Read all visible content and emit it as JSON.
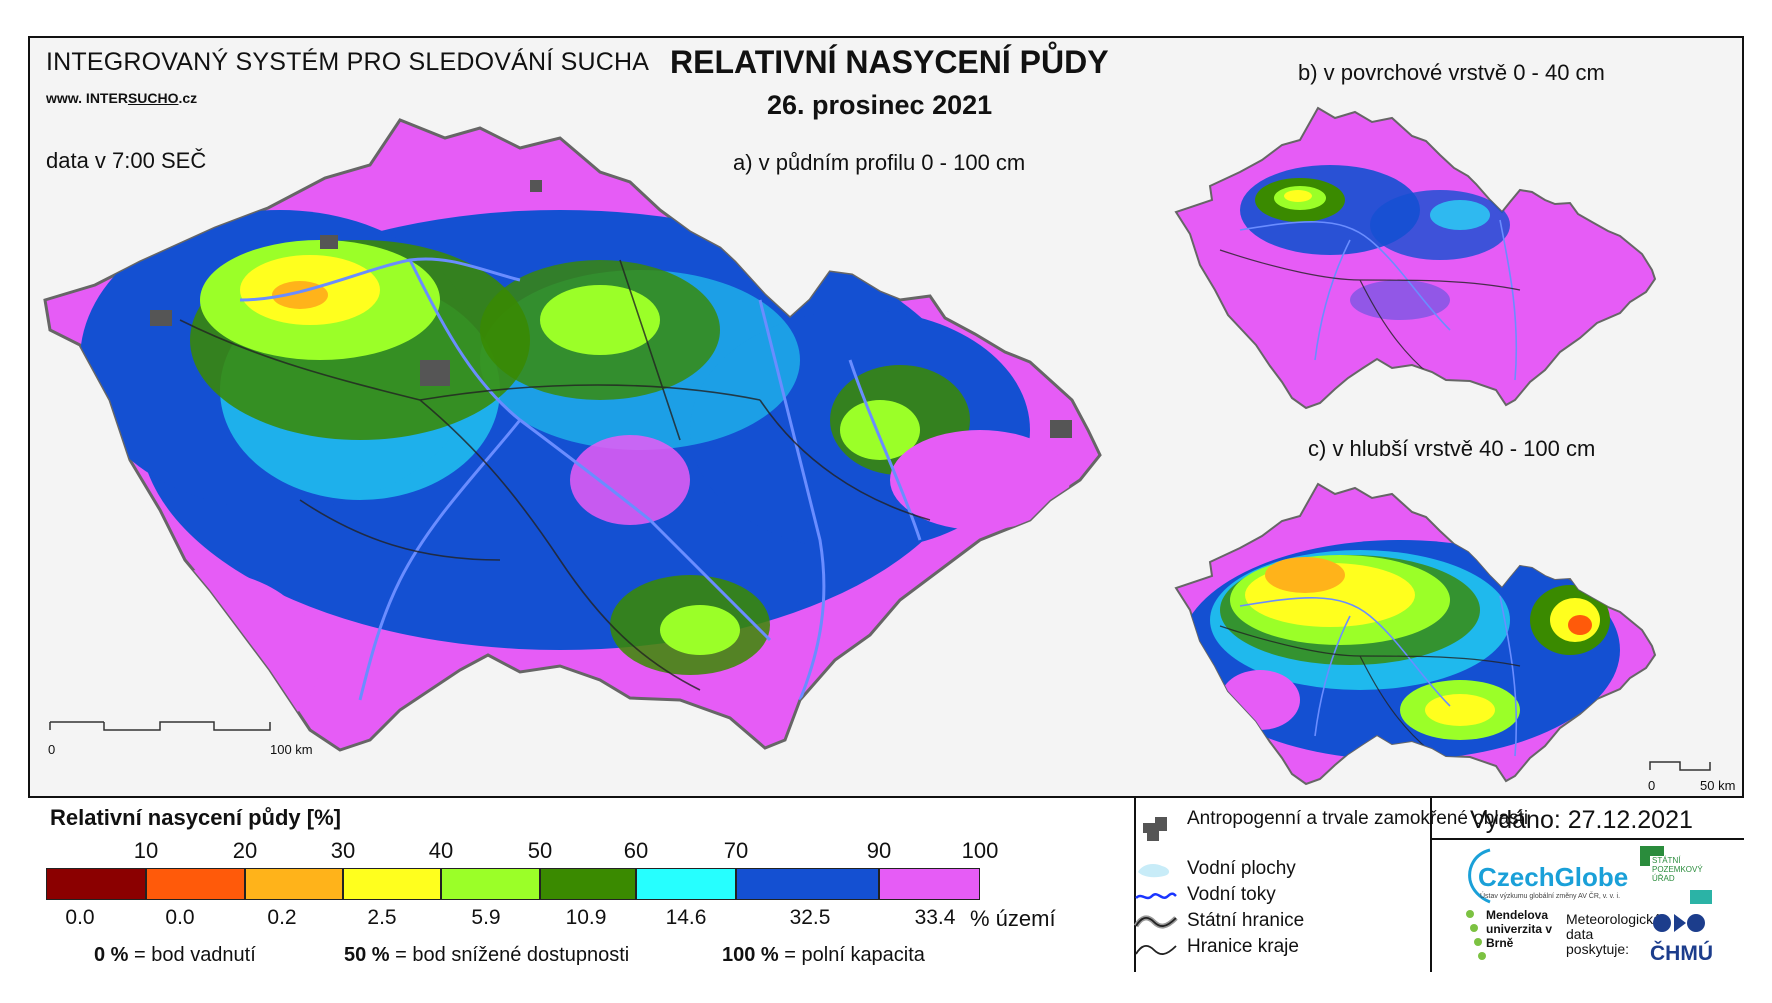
{
  "header": {
    "system_title": "INTEGROVANÝ SYSTÉM PRO SLEDOVÁNÍ SUCHA",
    "url_prefix": "www. INTER",
    "url_underlined": "SUCHO",
    "url_suffix": ".cz",
    "data_time": "data v 7:00 SEČ",
    "main_title": "RELATIVNÍ NASYCENÍ PŮDY",
    "date": "26. prosinec 2021"
  },
  "maps": {
    "a_label": "a) v půdním profilu 0 - 100 cm",
    "b_label": "b) v povrchové vrstvě 0 - 40 cm",
    "c_label": "c) v hlubší vrstvě 40 - 100 cm",
    "scale_a": {
      "start": "0",
      "end": "100 km"
    },
    "scale_c": {
      "start": "0",
      "end": "50 km"
    }
  },
  "legend": {
    "title": "Relativní nasycení půdy [%]",
    "ticks": [
      "10",
      "20",
      "30",
      "40",
      "50",
      "60",
      "70",
      "90",
      "100"
    ],
    "classes": [
      {
        "color": "#8b0000",
        "pct": "0.0"
      },
      {
        "color": "#ff5a0a",
        "pct": "0.0"
      },
      {
        "color": "#ffb31a",
        "pct": "0.2"
      },
      {
        "color": "#ffff1e",
        "pct": "2.5"
      },
      {
        "color": "#9bff28",
        "pct": "5.9"
      },
      {
        "color": "#3a8a00",
        "pct": "10.9"
      },
      {
        "color": "#26ffff",
        "pct": "14.6"
      },
      {
        "color": "#1450d2",
        "pct": "32.5"
      },
      {
        "color": "#e65cf6",
        "pct": "33.4"
      }
    ],
    "unit": "% území",
    "notes": [
      {
        "value": "0 %",
        "text": " = bod vadnutí"
      },
      {
        "value": "50 %",
        "text": " = bod snížené dostupnosti"
      },
      {
        "value": "100 %",
        "text": " = polní kapacita"
      }
    ]
  },
  "map_legend": {
    "items": [
      {
        "label": "Antropogenní a trvale zamokřené oblasti",
        "icon": "urban-area-icon"
      },
      {
        "label": "Vodní plochy",
        "icon": "water-body-icon"
      },
      {
        "label": "Vodní toky",
        "icon": "river-icon"
      },
      {
        "label": "Státní hranice",
        "icon": "state-border-icon"
      },
      {
        "label": "Hranice kraje",
        "icon": "region-border-icon"
      }
    ]
  },
  "footer": {
    "issued": "Vydáno: 27.12.2021",
    "czechglobe": "CzechGlobe",
    "czechglobe_sub": "Ústav výzkumu globální změny AV ČR, v. v. i.",
    "spu": "STÁTNÍ POZEMKOVÝ ÚŘAD",
    "mendel": "Mendelova univerzita v Brně",
    "meteo": "Meteorologická data poskytuje:",
    "chmu": "ČHMÚ"
  },
  "colors": {
    "pink": "#e65cf6",
    "blue": "#1450d2",
    "cyan": "#26ffff",
    "green": "#3a8a00",
    "lightgreen": "#9bff28",
    "yellow": "#ffff1e",
    "orange": "#ffb31a",
    "urban": "#555555",
    "river": "#6a8dff"
  }
}
